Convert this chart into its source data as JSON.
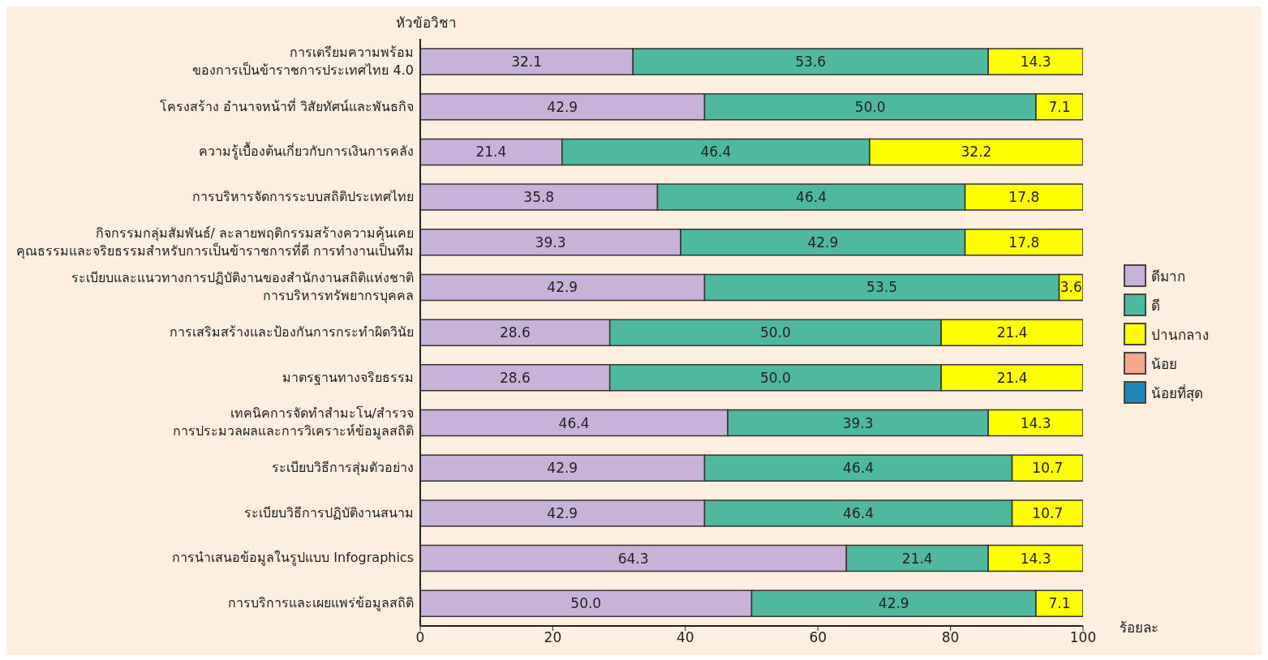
{
  "chart_data": {
    "type": "bar",
    "orientation": "horizontal",
    "stacked": true,
    "ylabel": "หัวข้อวิชา",
    "xlabel": "ร้อยละ",
    "categories": [
      "การเตรียมความพร้อม\nของการเป็นข้าราชการประเทศไทย 4.0",
      "โครงสร้าง อำนาจหน้าที่ วิสัยทัศน์และพันธกิจ",
      "ความรู้เบื้องต้นเกี่ยวกับการเงินการคลัง",
      "การบริหารจัดการระบบสถิติประเทศไทย",
      "กิจกรรมกลุ่มสัมพันธ์/ ละลายพฤติกรรมสร้างความคุ้นเคย\nคุณธรรมและจริยธรรมสำหรับการเป็นข้าราชการที่ดี การทำงานเป็นทีม",
      "ระเบียบและแนวทางการปฏิบัติงานของสำนักงานสถิติแห่งชาติ\nการบริหารทรัพยากรบุคคล",
      "การเสริมสร้างและป้องกันการกระทำผิดวินัย",
      "มาตรฐานทางจริยธรรม",
      "เทคนิคการจัดทำสำมะโน/สำรวจ\nการประมวลผลและการวิเคราะห์ข้อมูลสถิติ",
      "ระเบียบวิธีการสุ่มตัวอย่าง",
      "ระเบียบวิธีการปฏิบัติงานสนาม",
      "การนำเสนอข้อมูลในรูปแบบ Infographics",
      "การบริการและเผยแพร่ข้อมูลสถิติ"
    ],
    "series": [
      {
        "name": "ดีมาก",
        "color": "#c8b2da",
        "values": [
          32.1,
          42.9,
          21.4,
          35.8,
          39.3,
          42.9,
          28.6,
          28.6,
          46.4,
          42.9,
          42.9,
          64.3,
          50.0
        ],
        "value_labels": [
          "32.1",
          "42.9",
          "21.4",
          "35.8",
          "39.3",
          "42.9",
          "28.6",
          "28.6",
          "46.4",
          "42.9",
          "42.9",
          "64.3",
          "50.0"
        ]
      },
      {
        "name": "ดี",
        "color": "#4fb9a0",
        "values": [
          53.6,
          50.0,
          46.4,
          46.4,
          42.9,
          53.5,
          50.0,
          50.0,
          39.3,
          46.4,
          46.4,
          21.4,
          42.9
        ],
        "value_labels": [
          "53.6",
          "50.0",
          "46.4",
          "46.4",
          "42.9",
          "53.5",
          "50.0",
          "50.0",
          "39.3",
          "46.4",
          "46.4",
          "21.4",
          "42.9"
        ]
      },
      {
        "name": "ปานกลาง",
        "color": "#ffff00",
        "values": [
          14.3,
          7.1,
          32.2,
          17.8,
          17.8,
          3.6,
          21.4,
          21.4,
          14.3,
          10.7,
          10.7,
          14.3,
          7.1
        ],
        "value_labels": [
          "14.3",
          "7.1",
          "32.2",
          "17.8",
          "17.8",
          "3.6",
          "21.4",
          "21.4",
          "14.3",
          "10.7",
          "10.7",
          "14.3",
          "7.1"
        ]
      },
      {
        "name": "น้อย",
        "color": "#f4a88c",
        "values": [
          null,
          null,
          null,
          null,
          null,
          null,
          null,
          null,
          null,
          null,
          null,
          null,
          null
        ]
      },
      {
        "name": "น้อยที่สุด",
        "color": "#1f86b8",
        "values": [
          null,
          null,
          null,
          null,
          null,
          null,
          null,
          null,
          null,
          null,
          null,
          null,
          null
        ]
      }
    ],
    "xlim": [
      0,
      100
    ],
    "xticks": [
      0,
      20,
      40,
      60,
      80,
      100
    ],
    "legend": "right"
  }
}
